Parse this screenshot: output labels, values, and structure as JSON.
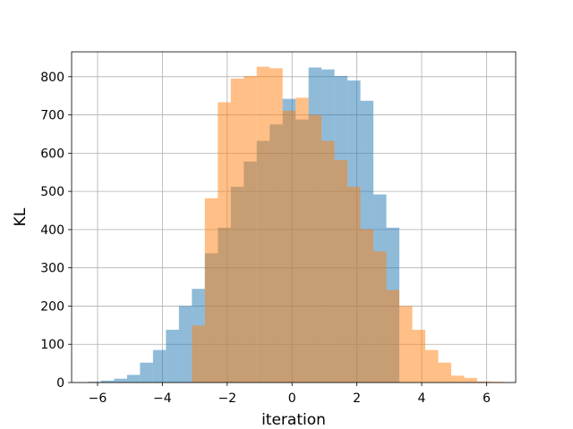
{
  "chart_data": {
    "type": "histogram",
    "xlabel": "iteration",
    "ylabel": "KL",
    "xlim": [
      -6.8,
      6.9
    ],
    "ylim": [
      0,
      865
    ],
    "xticks": [
      -6,
      -4,
      -2,
      0,
      2,
      4,
      6
    ],
    "yticks": [
      0,
      100,
      200,
      300,
      400,
      500,
      600,
      700,
      800
    ],
    "grid": true,
    "legend": "none",
    "series": [
      {
        "color": "#1f77b4",
        "opacity": 0.5,
        "bins": [
          {
            "x0": -6.29,
            "x1": -5.89,
            "value": 2
          },
          {
            "x0": -5.89,
            "x1": -5.49,
            "value": 5
          },
          {
            "x0": -5.49,
            "x1": -5.09,
            "value": 10
          },
          {
            "x0": -5.09,
            "x1": -4.69,
            "value": 20
          },
          {
            "x0": -4.69,
            "x1": -4.29,
            "value": 52
          },
          {
            "x0": -4.29,
            "x1": -3.89,
            "value": 85
          },
          {
            "x0": -3.89,
            "x1": -3.49,
            "value": 138
          },
          {
            "x0": -3.49,
            "x1": -3.09,
            "value": 200
          },
          {
            "x0": -3.09,
            "x1": -2.69,
            "value": 245
          },
          {
            "x0": -2.69,
            "x1": -2.29,
            "value": 338
          },
          {
            "x0": -2.29,
            "x1": -1.89,
            "value": 405
          },
          {
            "x0": -1.89,
            "x1": -1.49,
            "value": 512
          },
          {
            "x0": -1.49,
            "x1": -1.09,
            "value": 578
          },
          {
            "x0": -1.09,
            "x1": -0.69,
            "value": 632
          },
          {
            "x0": -0.69,
            "x1": -0.29,
            "value": 675
          },
          {
            "x0": -0.29,
            "x1": 0.11,
            "value": 742
          },
          {
            "x0": 0.11,
            "x1": 0.51,
            "value": 688
          },
          {
            "x0": 0.51,
            "x1": 0.91,
            "value": 824
          },
          {
            "x0": 0.91,
            "x1": 1.31,
            "value": 819
          },
          {
            "x0": 1.31,
            "x1": 1.71,
            "value": 802
          },
          {
            "x0": 1.71,
            "x1": 2.11,
            "value": 790
          },
          {
            "x0": 2.11,
            "x1": 2.51,
            "value": 737
          },
          {
            "x0": 2.51,
            "x1": 2.91,
            "value": 492
          },
          {
            "x0": 2.91,
            "x1": 3.31,
            "value": 405
          }
        ]
      },
      {
        "color": "#ff7f0e",
        "opacity": 0.5,
        "bins": [
          {
            "x0": -3.09,
            "x1": -2.69,
            "value": 149
          },
          {
            "x0": -2.69,
            "x1": -2.29,
            "value": 482
          },
          {
            "x0": -2.29,
            "x1": -1.89,
            "value": 733
          },
          {
            "x0": -1.89,
            "x1": -1.49,
            "value": 795
          },
          {
            "x0": -1.49,
            "x1": -1.09,
            "value": 802
          },
          {
            "x0": -1.09,
            "x1": -0.69,
            "value": 826
          },
          {
            "x0": -0.69,
            "x1": -0.29,
            "value": 822
          },
          {
            "x0": -0.29,
            "x1": 0.11,
            "value": 711
          },
          {
            "x0": 0.11,
            "x1": 0.51,
            "value": 745
          },
          {
            "x0": 0.51,
            "x1": 0.91,
            "value": 700
          },
          {
            "x0": 0.91,
            "x1": 1.31,
            "value": 632
          },
          {
            "x0": 1.31,
            "x1": 1.71,
            "value": 582
          },
          {
            "x0": 1.71,
            "x1": 2.11,
            "value": 512
          },
          {
            "x0": 2.11,
            "x1": 2.51,
            "value": 401
          },
          {
            "x0": 2.51,
            "x1": 2.91,
            "value": 343
          },
          {
            "x0": 2.91,
            "x1": 3.31,
            "value": 242
          },
          {
            "x0": 3.31,
            "x1": 3.71,
            "value": 200
          },
          {
            "x0": 3.71,
            "x1": 4.11,
            "value": 138
          },
          {
            "x0": 4.11,
            "x1": 4.51,
            "value": 85
          },
          {
            "x0": 4.51,
            "x1": 4.91,
            "value": 52
          },
          {
            "x0": 4.91,
            "x1": 5.31,
            "value": 18
          },
          {
            "x0": 5.31,
            "x1": 5.71,
            "value": 12
          },
          {
            "x0": 5.71,
            "x1": 6.11,
            "value": 3
          },
          {
            "x0": 6.11,
            "x1": 6.51,
            "value": 2
          }
        ]
      }
    ]
  }
}
